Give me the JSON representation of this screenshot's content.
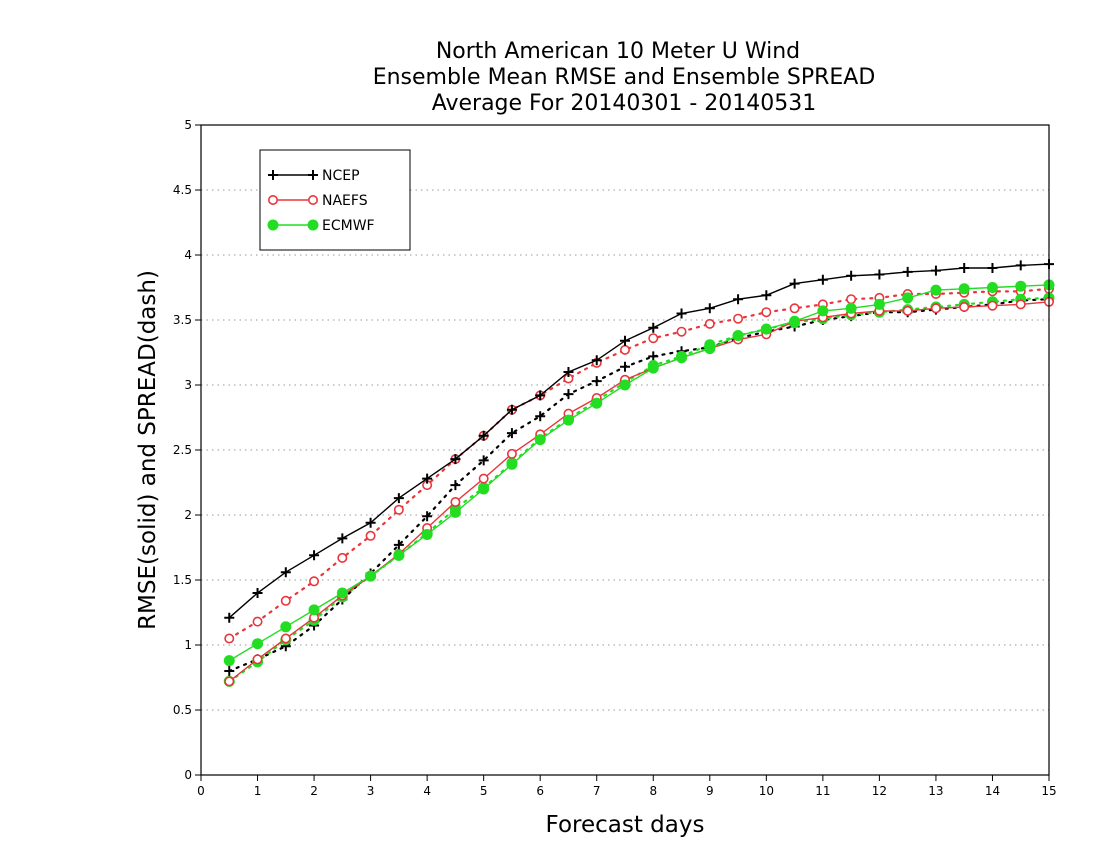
{
  "chart_data": {
    "type": "line",
    "title": [
      "North American 10 Meter U Wind",
      "Ensemble Mean RMSE and Ensemble SPREAD",
      "Average For 20140301 - 20140531"
    ],
    "xlabel": "Forecast days",
    "ylabel": "RMSE(solid) and SPREAD(dash)",
    "xlim": [
      0,
      15
    ],
    "ylim": [
      0,
      5
    ],
    "x_ticks": [
      "0",
      "1",
      "2",
      "3",
      "4",
      "5",
      "6",
      "7",
      "8",
      "9",
      "10",
      "11",
      "12",
      "13",
      "14",
      "15"
    ],
    "y_ticks": [
      "0",
      "0.5",
      "1",
      "1.5",
      "2",
      "2.5",
      "3",
      "3.5",
      "4",
      "4.5",
      "5"
    ],
    "grid": true,
    "legend_position": "top-left",
    "x": [
      0.5,
      1,
      1.5,
      2,
      2.5,
      3,
      3.5,
      4,
      4.5,
      5,
      5.5,
      6,
      6.5,
      7,
      7.5,
      8,
      8.5,
      9,
      9.5,
      10,
      10.5,
      11,
      11.5,
      12,
      12.5,
      13,
      13.5,
      14,
      14.5,
      15
    ],
    "series": [
      {
        "name": "NCEP",
        "metric": "RMSE",
        "style": "solid",
        "marker": "plus",
        "color": "#000000",
        "values": [
          1.21,
          1.4,
          1.56,
          1.69,
          1.82,
          1.94,
          2.13,
          2.28,
          2.43,
          2.61,
          2.81,
          2.92,
          3.1,
          3.19,
          3.34,
          3.44,
          3.55,
          3.59,
          3.66,
          3.69,
          3.78,
          3.81,
          3.84,
          3.85,
          3.87,
          3.88,
          3.9,
          3.9,
          3.92,
          3.93
        ]
      },
      {
        "name": "NCEP",
        "metric": "SPREAD",
        "style": "dash",
        "marker": "plus",
        "color": "#000000",
        "values": [
          0.8,
          0.89,
          0.99,
          1.15,
          1.35,
          1.55,
          1.77,
          1.99,
          2.23,
          2.42,
          2.63,
          2.76,
          2.93,
          3.03,
          3.14,
          3.22,
          3.26,
          3.29,
          3.36,
          3.41,
          3.45,
          3.5,
          3.53,
          3.56,
          3.56,
          3.58,
          3.6,
          3.62,
          3.65,
          3.66
        ]
      },
      {
        "name": "NAEFS",
        "metric": "RMSE",
        "style": "solid",
        "marker": "open-circle",
        "color": "#e8363c",
        "values": [
          0.72,
          0.89,
          1.05,
          1.21,
          1.38,
          1.53,
          1.7,
          1.9,
          2.1,
          2.28,
          2.47,
          2.62,
          2.78,
          2.9,
          3.04,
          3.13,
          3.21,
          3.28,
          3.35,
          3.39,
          3.49,
          3.52,
          3.55,
          3.57,
          3.57,
          3.59,
          3.6,
          3.61,
          3.62,
          3.64
        ]
      },
      {
        "name": "NAEFS",
        "metric": "SPREAD",
        "style": "dash",
        "marker": "open-circle",
        "color": "#e8363c",
        "values": [
          1.05,
          1.18,
          1.34,
          1.49,
          1.67,
          1.84,
          2.04,
          2.23,
          2.43,
          2.61,
          2.81,
          2.92,
          3.05,
          3.17,
          3.27,
          3.36,
          3.41,
          3.47,
          3.51,
          3.56,
          3.59,
          3.62,
          3.66,
          3.67,
          3.7,
          3.7,
          3.71,
          3.72,
          3.72,
          3.74
        ]
      },
      {
        "name": "ECMWF",
        "metric": "RMSE",
        "style": "solid",
        "marker": "filled-circle",
        "color": "#22dd22",
        "values": [
          0.88,
          1.01,
          1.14,
          1.27,
          1.4,
          1.53,
          1.69,
          1.85,
          2.02,
          2.2,
          2.39,
          2.58,
          2.73,
          2.86,
          3.0,
          3.13,
          3.21,
          3.28,
          3.38,
          3.43,
          3.49,
          3.57,
          3.59,
          3.62,
          3.67,
          3.73,
          3.74,
          3.75,
          3.76,
          3.77
        ]
      },
      {
        "name": "ECMWF",
        "metric": "SPREAD",
        "style": "dash",
        "marker": "filled-circle",
        "color": "#22dd22",
        "values": [
          0.72,
          0.87,
          1.04,
          1.19,
          1.37,
          1.53,
          1.69,
          1.86,
          2.05,
          2.21,
          2.4,
          2.59,
          2.74,
          2.88,
          3.02,
          3.15,
          3.22,
          3.31,
          3.38,
          3.43,
          3.48,
          3.51,
          3.54,
          3.56,
          3.58,
          3.6,
          3.62,
          3.64,
          3.66,
          3.67
        ]
      }
    ],
    "legend": [
      {
        "name": "NCEP",
        "marker": "plus",
        "color": "#000000"
      },
      {
        "name": "NAEFS",
        "marker": "open-circle",
        "color": "#e8363c"
      },
      {
        "name": "ECMWF",
        "marker": "filled-circle",
        "color": "#22dd22"
      }
    ]
  }
}
